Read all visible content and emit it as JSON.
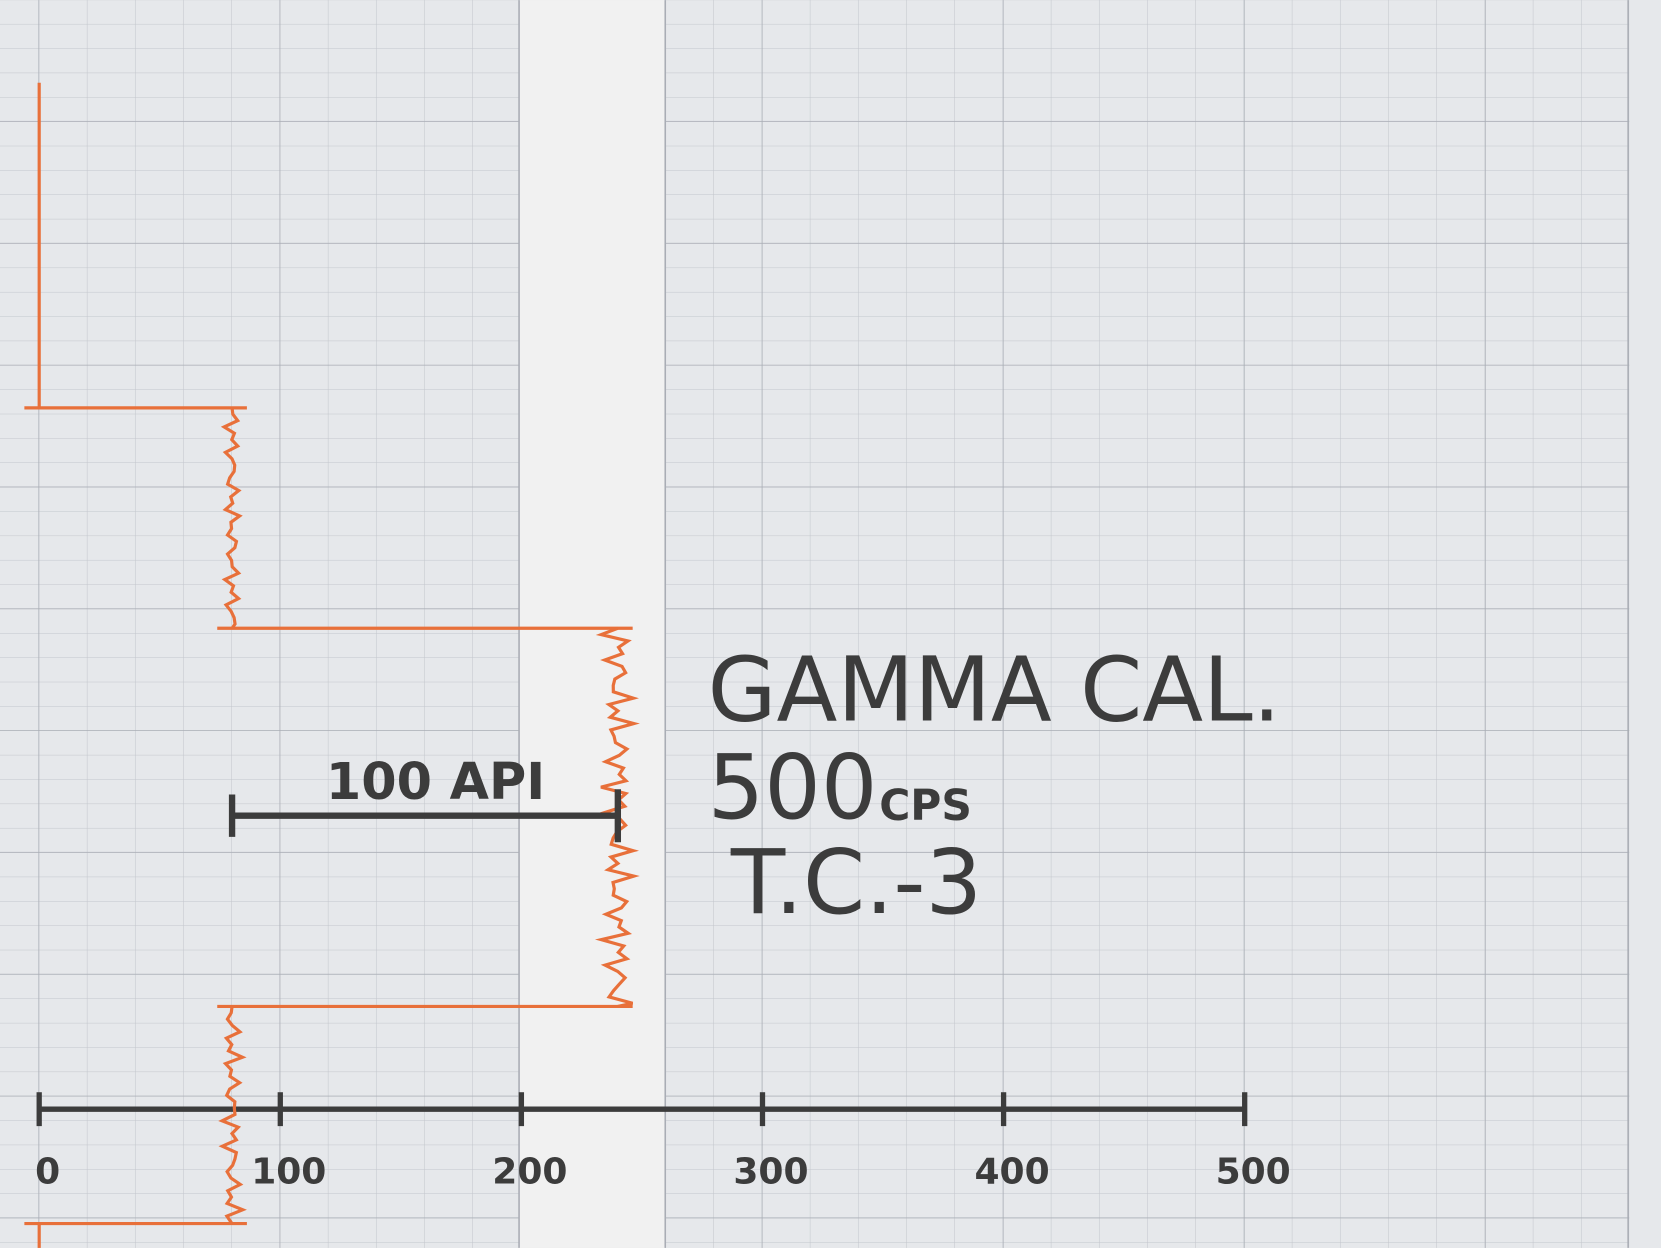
{
  "chart_data": {
    "type": "step",
    "annotations": [
      "GAMMA CAL.",
      "500",
      "CPS",
      "T.C.-3"
    ],
    "scale_bar_label": "100 API",
    "values": [
      0,
      80,
      240,
      80,
      0
    ],
    "color": "#e8703a",
    "xlim": [
      0,
      500
    ],
    "xticks": [
      0,
      100,
      200,
      300,
      400,
      500
    ]
  }
}
